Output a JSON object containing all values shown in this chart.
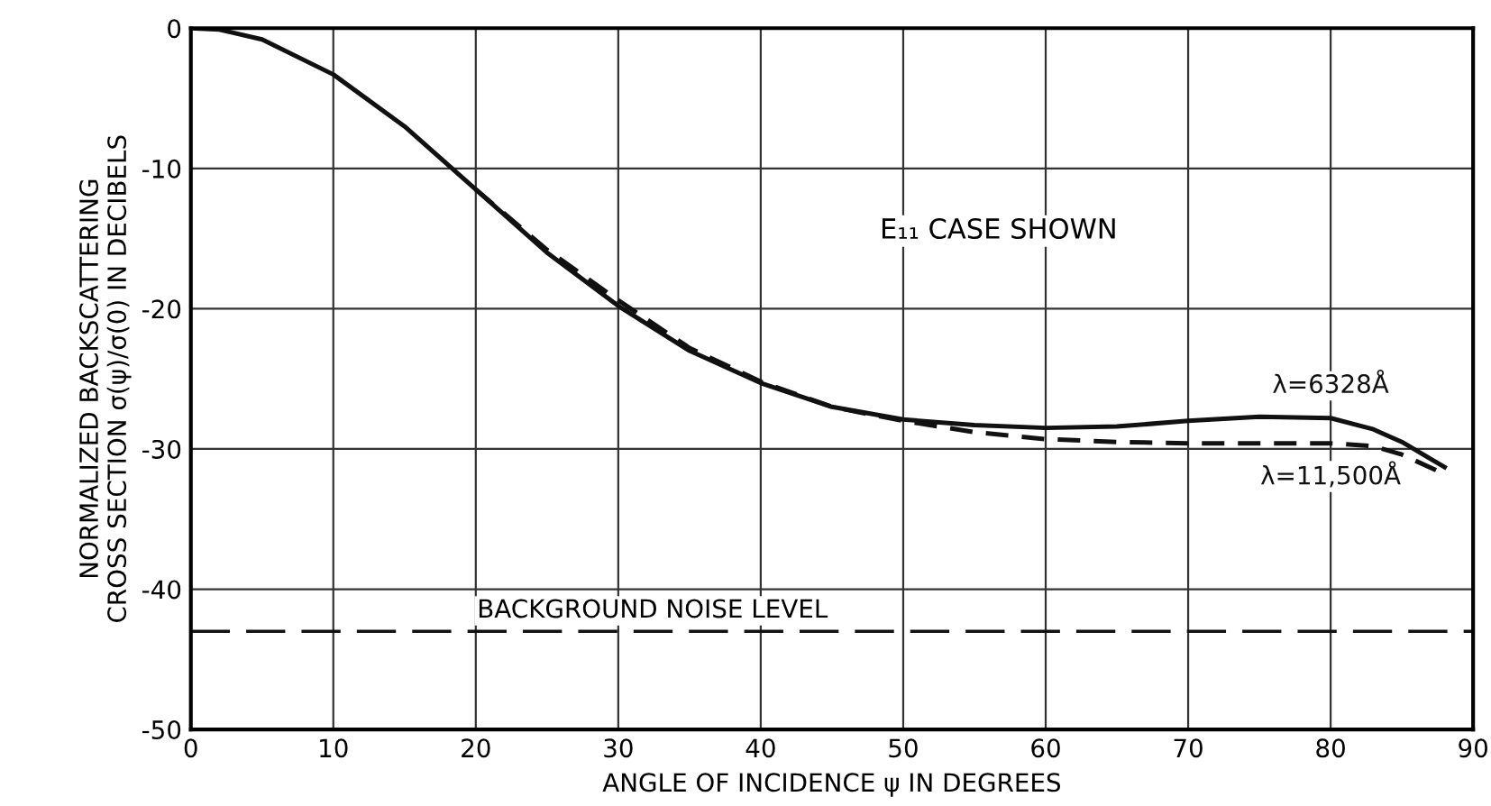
{
  "chart_data": {
    "type": "line",
    "xlabel": "ANGLE OF INCIDENCE ψ IN DEGREES",
    "ylabel": "NORMALIZED BACKSCATTERING\nCROSS SECTION σ(ψ)/σ(0) IN DECIBELS",
    "annotations": [
      "E₁₁ CASE SHOWN"
    ],
    "xlim": [
      0,
      90
    ],
    "xticks": [
      0,
      10,
      20,
      30,
      40,
      50,
      60,
      70,
      80,
      90
    ],
    "ylim": [
      -50,
      0
    ],
    "yticks": [
      -50,
      -40,
      -30,
      -20,
      -10,
      0
    ],
    "grid": true,
    "legend": false,
    "marker": "none",
    "series": [
      {
        "name": "λ=6328Å",
        "color": "#111111",
        "line_style": "solid",
        "x": [
          0,
          2,
          5,
          10,
          15,
          20,
          25,
          30,
          35,
          40,
          45,
          50,
          55,
          60,
          65,
          70,
          75,
          80,
          83,
          85,
          88
        ],
        "values": [
          0,
          -0.1,
          -0.8,
          -3.3,
          -7,
          -11.5,
          -16,
          -19.8,
          -23,
          -25.3,
          -27,
          -27.9,
          -28.3,
          -28.5,
          -28.4,
          -28,
          -27.7,
          -27.8,
          -28.6,
          -29.5,
          -31.3
        ]
      },
      {
        "name": "λ=11,500Å",
        "color": "#111111",
        "line_style": "dashed",
        "x": [
          20,
          25,
          30,
          35,
          40,
          45,
          50,
          55,
          60,
          65,
          70,
          75,
          80,
          83,
          85,
          88
        ],
        "values": [
          -11.5,
          -15.8,
          -19.4,
          -22.8,
          -25.2,
          -27,
          -28,
          -28.8,
          -29.3,
          -29.5,
          -29.6,
          -29.6,
          -29.6,
          -29.8,
          -30.4,
          -31.8
        ]
      }
    ],
    "ref_lines": [
      {
        "axis": "y",
        "value": -43,
        "label": "BACKGROUND NOISE LEVEL",
        "line_style": "dashed",
        "color": "#111111"
      }
    ]
  }
}
